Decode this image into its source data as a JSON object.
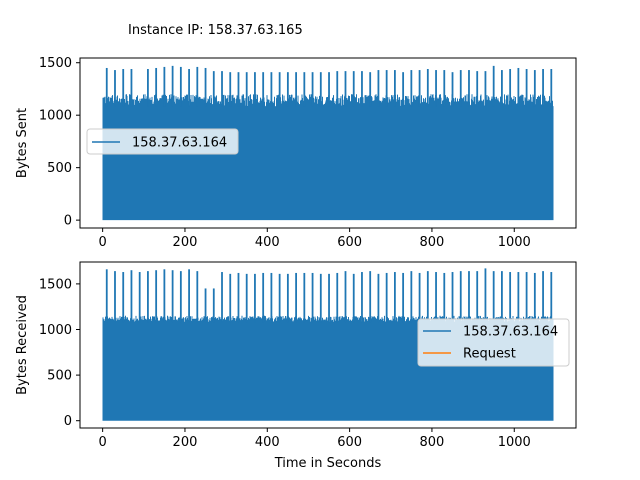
{
  "title": "Instance IP: 158.37.63.165",
  "chart_data": [
    {
      "type": "line",
      "ylabel": "Bytes Sent",
      "xlabel": "",
      "xlim": [
        -55,
        1150
      ],
      "ylim": [
        -75,
        1545
      ],
      "xticks": [
        0,
        200,
        400,
        600,
        800,
        1000
      ],
      "yticks": [
        0,
        500,
        1000,
        1500
      ],
      "legend_position": "center-left",
      "series": [
        {
          "name": "158.37.63.164",
          "color": "#1f77b4",
          "description": "dense oscillation between 0 and ~1100-1200 bytes over 0-1100 s",
          "baseline_low": 0,
          "band_high_range": [
            1080,
            1200
          ],
          "x_range": [
            0,
            1095
          ],
          "spike_x": [
            10,
            30,
            50,
            70,
            110,
            130,
            150,
            170,
            190,
            210,
            230,
            250,
            270,
            290,
            310,
            330,
            350,
            370,
            390,
            410,
            430,
            450,
            470,
            490,
            510,
            530,
            550,
            570,
            590,
            610,
            630,
            650,
            670,
            690,
            710,
            730,
            750,
            770,
            790,
            810,
            830,
            850,
            870,
            890,
            910,
            930,
            950,
            970,
            990,
            1010,
            1030,
            1050,
            1070,
            1090
          ],
          "spike_y": [
            1450,
            1430,
            1440,
            1440,
            1440,
            1450,
            1460,
            1470,
            1460,
            1440,
            1460,
            1450,
            1420,
            1420,
            1410,
            1410,
            1410,
            1410,
            1410,
            1410,
            1410,
            1410,
            1410,
            1410,
            1410,
            1410,
            1410,
            1420,
            1420,
            1420,
            1420,
            1410,
            1430,
            1430,
            1430,
            1410,
            1430,
            1430,
            1440,
            1430,
            1430,
            1410,
            1430,
            1430,
            1420,
            1420,
            1470,
            1430,
            1440,
            1450,
            1440,
            1430,
            1440,
            1440
          ]
        }
      ]
    },
    {
      "type": "line",
      "ylabel": "Bytes Received",
      "xlabel": "Time in Seconds",
      "xlim": [
        -55,
        1150
      ],
      "ylim": [
        -80,
        1740
      ],
      "xticks": [
        0,
        200,
        400,
        600,
        800,
        1000
      ],
      "yticks": [
        0,
        500,
        1000,
        1500
      ],
      "legend_position": "center-right",
      "series": [
        {
          "name": "158.37.63.164",
          "color": "#1f77b4",
          "description": "dense oscillation between 0 and ~1100-1150 bytes over 0-1100 s",
          "baseline_low": 0,
          "band_high_range": [
            1080,
            1150
          ],
          "x_range": [
            0,
            1095
          ],
          "spike_x": [
            10,
            30,
            50,
            70,
            90,
            110,
            130,
            150,
            170,
            190,
            210,
            230,
            250,
            270,
            290,
            310,
            330,
            350,
            370,
            390,
            410,
            430,
            450,
            470,
            490,
            510,
            530,
            550,
            570,
            590,
            610,
            630,
            650,
            670,
            690,
            710,
            730,
            750,
            770,
            790,
            810,
            830,
            850,
            870,
            890,
            910,
            930,
            950,
            970,
            990,
            1010,
            1030,
            1050,
            1070,
            1090
          ],
          "spike_y": [
            1660,
            1640,
            1630,
            1650,
            1630,
            1640,
            1650,
            1660,
            1650,
            1640,
            1660,
            1640,
            1450,
            1450,
            1630,
            1610,
            1620,
            1610,
            1610,
            1620,
            1620,
            1610,
            1610,
            1620,
            1620,
            1620,
            1610,
            1610,
            1620,
            1640,
            1610,
            1630,
            1640,
            1610,
            1620,
            1630,
            1620,
            1640,
            1620,
            1640,
            1630,
            1620,
            1630,
            1640,
            1640,
            1640,
            1670,
            1640,
            1640,
            1630,
            1630,
            1630,
            1620,
            1640,
            1630
          ]
        },
        {
          "name": "Request",
          "color": "#ff7f0e",
          "values": []
        }
      ]
    }
  ]
}
